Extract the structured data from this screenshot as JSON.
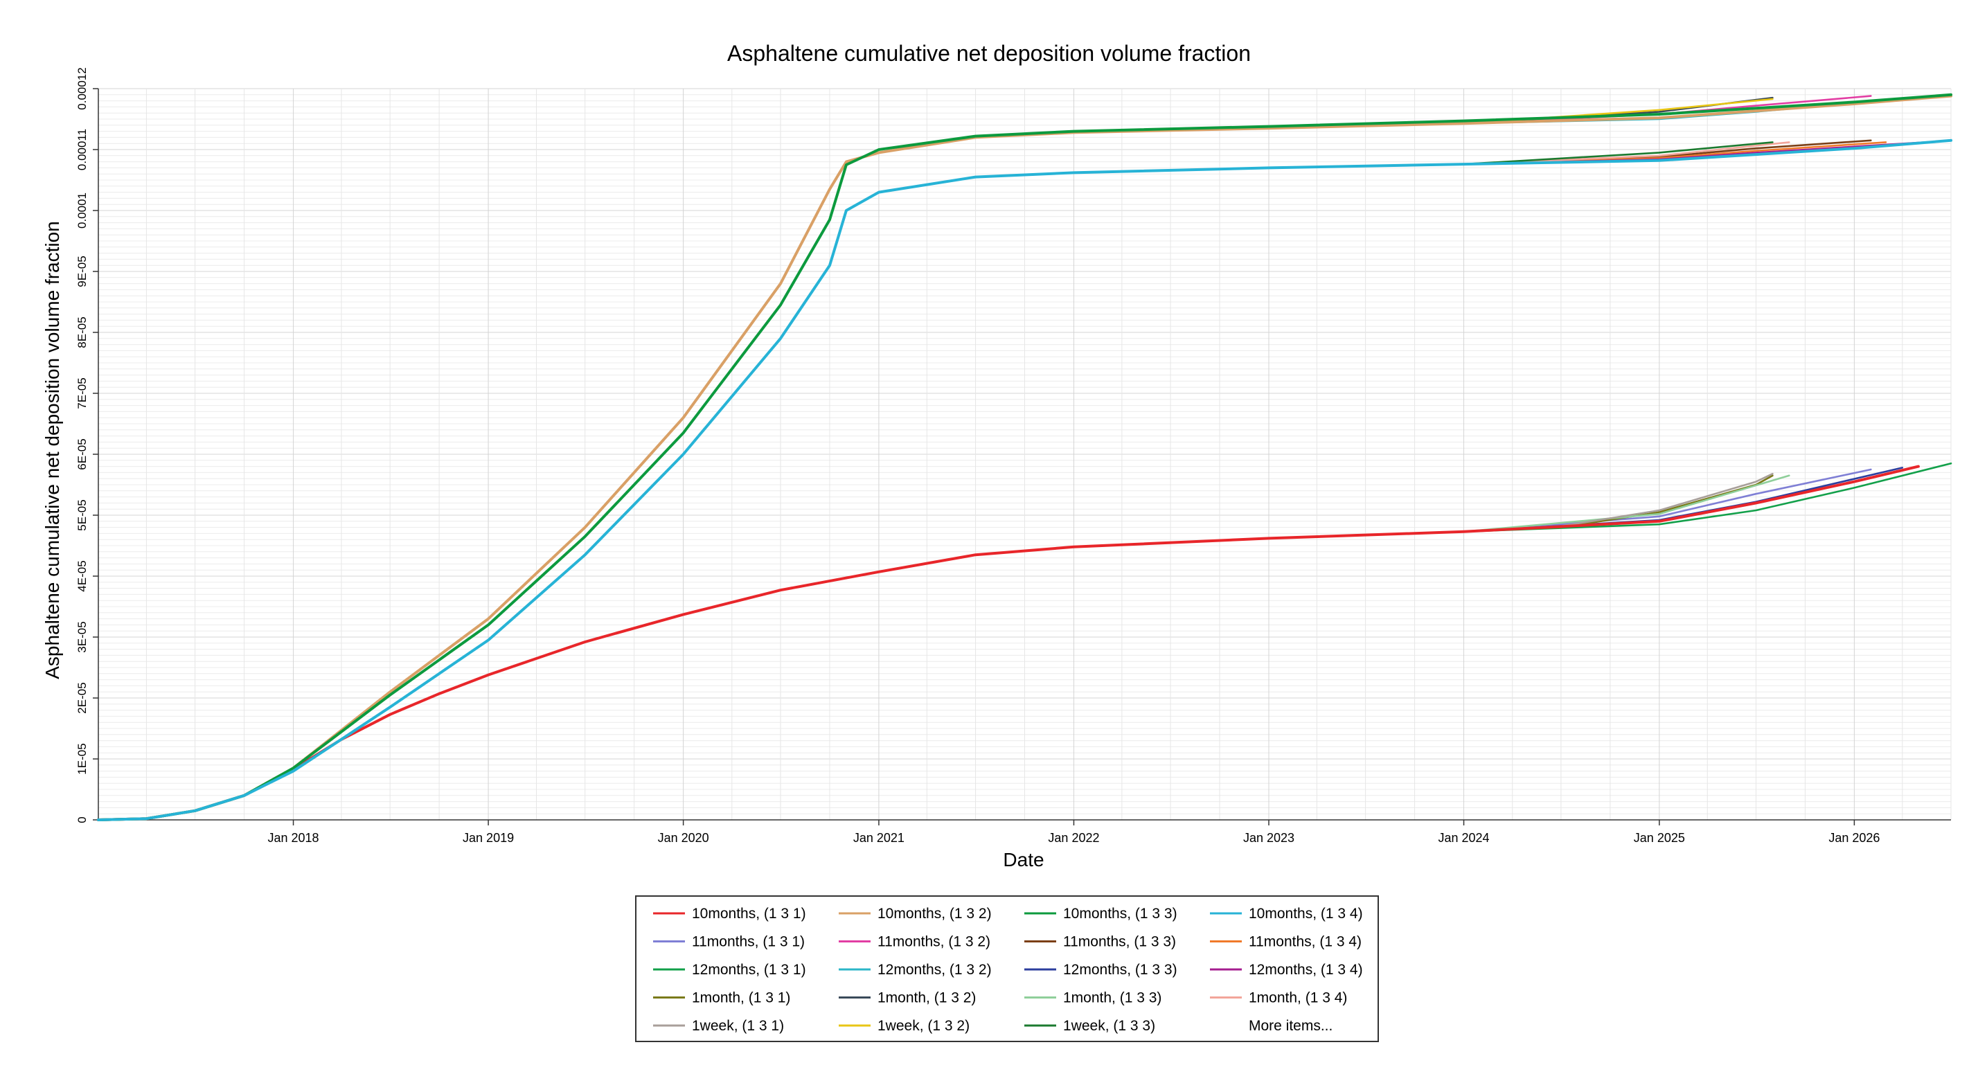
{
  "chart_data": {
    "type": "line",
    "title": "Asphaltene cumulative net deposition volume fraction",
    "xlabel": "Date",
    "ylabel": "Asphaltene cumulative net deposition volume fraction",
    "x_axis_type": "date",
    "xlim": [
      "2017-01-01",
      "2026-07-01"
    ],
    "ylim": [
      0,
      0.00012
    ],
    "x_ticks": [
      {
        "date": "2018-01-01",
        "label": "Jan 2018"
      },
      {
        "date": "2019-01-01",
        "label": "Jan 2019"
      },
      {
        "date": "2020-01-01",
        "label": "Jan 2020"
      },
      {
        "date": "2021-01-01",
        "label": "Jan 2021"
      },
      {
        "date": "2022-01-01",
        "label": "Jan 2022"
      },
      {
        "date": "2023-01-01",
        "label": "Jan 2023"
      },
      {
        "date": "2024-01-01",
        "label": "Jan 2024"
      },
      {
        "date": "2025-01-01",
        "label": "Jan 2025"
      },
      {
        "date": "2026-01-01",
        "label": "Jan 2026"
      }
    ],
    "y_ticks": [
      {
        "value": 0,
        "label": "0"
      },
      {
        "value": 1e-05,
        "label": "1E-05"
      },
      {
        "value": 2e-05,
        "label": "2E-05"
      },
      {
        "value": 3e-05,
        "label": "3E-05"
      },
      {
        "value": 4e-05,
        "label": "4E-05"
      },
      {
        "value": 5e-05,
        "label": "5E-05"
      },
      {
        "value": 6e-05,
        "label": "6E-05"
      },
      {
        "value": 7e-05,
        "label": "7E-05"
      },
      {
        "value": 8e-05,
        "label": "8E-05"
      },
      {
        "value": 9e-05,
        "label": "9E-05"
      },
      {
        "value": 0.0001,
        "label": "0.0001"
      },
      {
        "value": 0.00011,
        "label": "0.00011"
      },
      {
        "value": 0.00012,
        "label": "0.00012"
      }
    ],
    "grid": true,
    "legend_position": "bottom",
    "legend_more_label": "More items...",
    "series": [
      {
        "name": "10months, (1 3 1)",
        "color": "#e8262a",
        "points": [
          [
            "2017-01-01",
            0
          ],
          [
            "2017-04-01",
            2e-07
          ],
          [
            "2017-07-01",
            1.5e-06
          ],
          [
            "2017-10-01",
            4e-06
          ],
          [
            "2018-01-01",
            8.3e-06
          ],
          [
            "2018-04-01",
            1.32e-05
          ],
          [
            "2018-07-01",
            1.73e-05
          ],
          [
            "2018-10-01",
            2.07e-05
          ],
          [
            "2019-01-01",
            2.38e-05
          ],
          [
            "2019-07-01",
            2.92e-05
          ],
          [
            "2020-01-01",
            3.37e-05
          ],
          [
            "2020-07-01",
            3.77e-05
          ],
          [
            "2021-01-01",
            4.07e-05
          ],
          [
            "2021-07-01",
            4.35e-05
          ],
          [
            "2022-01-01",
            4.48e-05
          ],
          [
            "2023-01-01",
            4.62e-05
          ],
          [
            "2024-01-01",
            4.73e-05
          ],
          [
            "2025-01-01",
            4.9e-05
          ],
          [
            "2025-07-01",
            5.2e-05
          ],
          [
            "2026-01-01",
            5.55e-05
          ],
          [
            "2026-05-01",
            5.8e-05
          ]
        ]
      },
      {
        "name": "10months, (1 3 2)",
        "color": "#d9a066",
        "points": [
          [
            "2017-01-01",
            0
          ],
          [
            "2017-04-01",
            2e-07
          ],
          [
            "2017-07-01",
            1.5e-06
          ],
          [
            "2017-10-01",
            4e-06
          ],
          [
            "2018-01-01",
            8.5e-06
          ],
          [
            "2018-07-01",
            2.1e-05
          ],
          [
            "2019-01-01",
            3.3e-05
          ],
          [
            "2019-07-01",
            4.8e-05
          ],
          [
            "2020-01-01",
            6.6e-05
          ],
          [
            "2020-07-01",
            8.8e-05
          ],
          [
            "2020-10-01",
            0.0001035
          ],
          [
            "2020-11-01",
            0.000108
          ],
          [
            "2021-01-01",
            0.0001095
          ],
          [
            "2021-07-01",
            0.000112
          ],
          [
            "2022-01-01",
            0.0001128
          ],
          [
            "2023-01-01",
            0.0001135
          ],
          [
            "2024-01-01",
            0.0001143
          ],
          [
            "2025-01-01",
            0.0001152
          ],
          [
            "2026-01-01",
            0.0001175
          ],
          [
            "2026-07-01",
            0.0001188
          ]
        ]
      },
      {
        "name": "10months, (1 3 3)",
        "color": "#0c9a3e",
        "points": [
          [
            "2017-01-01",
            0
          ],
          [
            "2017-04-01",
            2e-07
          ],
          [
            "2017-07-01",
            1.5e-06
          ],
          [
            "2017-10-01",
            4e-06
          ],
          [
            "2018-01-01",
            8.5e-06
          ],
          [
            "2018-07-01",
            2.05e-05
          ],
          [
            "2019-01-01",
            3.2e-05
          ],
          [
            "2019-07-01",
            4.65e-05
          ],
          [
            "2020-01-01",
            6.35e-05
          ],
          [
            "2020-07-01",
            8.45e-05
          ],
          [
            "2020-10-01",
            9.85e-05
          ],
          [
            "2020-11-01",
            0.0001075
          ],
          [
            "2021-01-01",
            0.00011
          ],
          [
            "2021-07-01",
            0.0001122
          ],
          [
            "2022-01-01",
            0.000113
          ],
          [
            "2023-01-01",
            0.0001138
          ],
          [
            "2024-01-01",
            0.0001147
          ],
          [
            "2025-01-01",
            0.0001158
          ],
          [
            "2026-01-01",
            0.0001178
          ],
          [
            "2026-07-01",
            0.000119
          ]
        ]
      },
      {
        "name": "10months, (1 3 4)",
        "color": "#27b3d6",
        "points": [
          [
            "2017-01-01",
            0
          ],
          [
            "2017-04-01",
            2e-07
          ],
          [
            "2017-07-01",
            1.5e-06
          ],
          [
            "2017-10-01",
            4e-06
          ],
          [
            "2018-01-01",
            8e-06
          ],
          [
            "2018-07-01",
            1.85e-05
          ],
          [
            "2019-01-01",
            2.95e-05
          ],
          [
            "2019-07-01",
            4.35e-05
          ],
          [
            "2020-01-01",
            6e-05
          ],
          [
            "2020-07-01",
            7.9e-05
          ],
          [
            "2020-10-01",
            9.1e-05
          ],
          [
            "2020-11-01",
            0.0001
          ],
          [
            "2021-01-01",
            0.000103
          ],
          [
            "2021-07-01",
            0.0001055
          ],
          [
            "2022-01-01",
            0.0001062
          ],
          [
            "2023-01-01",
            0.000107
          ],
          [
            "2024-01-01",
            0.0001076
          ],
          [
            "2025-01-01",
            0.0001082
          ],
          [
            "2026-01-01",
            0.0001102
          ],
          [
            "2026-07-01",
            0.0001115
          ]
        ]
      },
      {
        "name": "11months, (1 3 1)",
        "color": "#7f7fd5",
        "points": [
          [
            "2024-01-01",
            4.73e-05
          ],
          [
            "2025-01-01",
            4.98e-05
          ],
          [
            "2025-07-01",
            5.35e-05
          ],
          [
            "2026-02-01",
            5.75e-05
          ]
        ]
      },
      {
        "name": "11months, (1 3 2)",
        "color": "#e23da3",
        "points": [
          [
            "2024-01-01",
            0.0001143
          ],
          [
            "2025-01-01",
            0.0001158
          ],
          [
            "2025-07-01",
            0.0001172
          ],
          [
            "2026-02-01",
            0.0001188
          ]
        ]
      },
      {
        "name": "11months, (1 3 3)",
        "color": "#7b3f16",
        "points": [
          [
            "2024-01-01",
            0.0001076
          ],
          [
            "2025-01-01",
            0.0001088
          ],
          [
            "2025-07-01",
            0.0001102
          ],
          [
            "2026-02-01",
            0.0001115
          ]
        ]
      },
      {
        "name": "11months, (1 3 4)",
        "color": "#f07a2a",
        "points": [
          [
            "2024-01-01",
            0.0001076
          ],
          [
            "2025-01-01",
            0.0001086
          ],
          [
            "2025-07-01",
            0.0001098
          ],
          [
            "2026-03-01",
            0.0001112
          ]
        ]
      },
      {
        "name": "12months, (1 3 1)",
        "color": "#12a04a",
        "points": [
          [
            "2024-01-01",
            4.73e-05
          ],
          [
            "2025-01-01",
            4.85e-05
          ],
          [
            "2025-07-01",
            5.08e-05
          ],
          [
            "2026-01-01",
            5.45e-05
          ],
          [
            "2026-07-01",
            5.85e-05
          ]
        ]
      },
      {
        "name": "12months, (1 3 2)",
        "color": "#2bb6c8",
        "points": [
          [
            "2024-01-01",
            0.0001143
          ],
          [
            "2025-01-01",
            0.000115
          ],
          [
            "2025-07-01",
            0.0001162
          ],
          [
            "2026-06-01",
            0.0001188
          ]
        ]
      },
      {
        "name": "12months, (1 3 3)",
        "color": "#2c3e9e",
        "points": [
          [
            "2024-01-01",
            4.73e-05
          ],
          [
            "2025-01-01",
            4.92e-05
          ],
          [
            "2025-07-01",
            5.22e-05
          ],
          [
            "2026-04-01",
            5.78e-05
          ]
        ]
      },
      {
        "name": "12months, (1 3 4)",
        "color": "#a51d8f",
        "points": [
          [
            "2024-01-01",
            0.0001076
          ],
          [
            "2025-01-01",
            0.0001084
          ],
          [
            "2025-07-01",
            0.0001095
          ],
          [
            "2026-06-01",
            0.0001113
          ]
        ]
      },
      {
        "name": "1month, (1 3 1)",
        "color": "#7a7a1a",
        "points": [
          [
            "2024-01-01",
            4.73e-05
          ],
          [
            "2024-07-01",
            4.8e-05
          ],
          [
            "2025-01-01",
            5.05e-05
          ],
          [
            "2025-07-01",
            5.5e-05
          ],
          [
            "2025-08-01",
            5.65e-05
          ]
        ]
      },
      {
        "name": "1month, (1 3 2)",
        "color": "#3a4a5a",
        "points": [
          [
            "2024-01-01",
            0.0001143
          ],
          [
            "2025-01-01",
            0.0001162
          ],
          [
            "2025-08-01",
            0.0001185
          ]
        ]
      },
      {
        "name": "1month, (1 3 3)",
        "color": "#8fcf9a",
        "points": [
          [
            "2024-01-01",
            4.73e-05
          ],
          [
            "2025-01-01",
            5.02e-05
          ],
          [
            "2025-09-01",
            5.65e-05
          ]
        ]
      },
      {
        "name": "1month, (1 3 4)",
        "color": "#f2a59a",
        "points": [
          [
            "2024-01-01",
            0.0001076
          ],
          [
            "2025-01-01",
            0.000109
          ],
          [
            "2025-09-01",
            0.0001112
          ]
        ]
      },
      {
        "name": "1week, (1 3 1)",
        "color": "#a89f9a",
        "points": [
          [
            "2024-01-01",
            4.73e-05
          ],
          [
            "2024-07-01",
            4.82e-05
          ],
          [
            "2025-01-01",
            5.08e-05
          ],
          [
            "2025-07-01",
            5.55e-05
          ],
          [
            "2025-08-01",
            5.68e-05
          ]
        ]
      },
      {
        "name": "1week, (1 3 2)",
        "color": "#e8c615",
        "points": [
          [
            "2024-01-01",
            0.0001143
          ],
          [
            "2025-01-01",
            0.0001165
          ],
          [
            "2025-08-01",
            0.0001183
          ]
        ]
      },
      {
        "name": "1week, (1 3 3)",
        "color": "#1b7a2f",
        "points": [
          [
            "2024-01-01",
            0.0001076
          ],
          [
            "2025-01-01",
            0.0001095
          ],
          [
            "2025-08-01",
            0.0001112
          ]
        ]
      }
    ]
  }
}
